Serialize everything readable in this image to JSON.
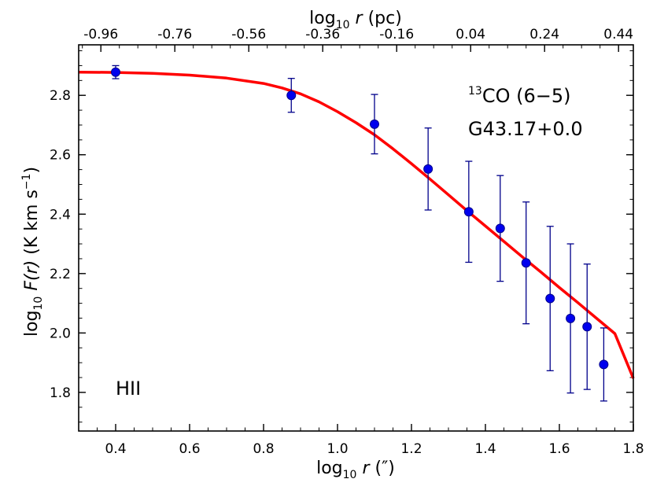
{
  "chart_data": {
    "type": "scatter",
    "title": "",
    "xlabel": {
      "prefix": "log",
      "sub": "10",
      "var": "r",
      "unit": " (″)"
    },
    "x2label": {
      "prefix": "log",
      "sub": "10",
      "var": "r",
      "unit": " (pc)"
    },
    "ylabel": {
      "prefix": "log",
      "sub": "10",
      "var": "F(r)",
      "unit": " (K km s",
      "sup": "−1",
      "close": ")"
    },
    "xlim": [
      0.3,
      1.8
    ],
    "ylim": [
      1.67,
      2.97
    ],
    "x_ticks": [
      0.4,
      0.6,
      0.8,
      1.0,
      1.2,
      1.4,
      1.6,
      1.8
    ],
    "x_tick_labels": [
      "0.4",
      "0.6",
      "0.8",
      "1.0",
      "1.2",
      "1.4",
      "1.6",
      "1.8"
    ],
    "y_ticks": [
      1.8,
      2.0,
      2.2,
      2.4,
      2.6,
      2.8
    ],
    "y_tick_labels": [
      "1.8",
      "2.0",
      "2.2",
      "2.4",
      "2.6",
      "2.8"
    ],
    "top_ticks": [
      0.36,
      0.56,
      0.76,
      0.96,
      1.16,
      1.36,
      1.56,
      1.76
    ],
    "top_tick_labels": [
      "-0.96",
      "-0.76",
      "-0.56",
      "-0.36",
      "-0.16",
      "0.04",
      "0.24",
      "0.44"
    ],
    "series": [
      {
        "name": "data",
        "color": "#0000ee",
        "points": [
          {
            "x": 0.4,
            "y": 2.878,
            "err": 0.022
          },
          {
            "x": 0.875,
            "y": 2.8,
            "err": 0.057
          },
          {
            "x": 1.1,
            "y": 2.703,
            "err": 0.1
          },
          {
            "x": 1.245,
            "y": 2.552,
            "err": 0.138
          },
          {
            "x": 1.355,
            "y": 2.408,
            "err": 0.17
          },
          {
            "x": 1.44,
            "y": 2.352,
            "err": 0.178
          },
          {
            "x": 1.51,
            "y": 2.236,
            "err": 0.205
          },
          {
            "x": 1.575,
            "y": 2.116,
            "err": 0.243
          },
          {
            "x": 1.63,
            "y": 2.049,
            "err": 0.251
          },
          {
            "x": 1.675,
            "y": 2.021,
            "err": 0.211
          },
          {
            "x": 1.72,
            "y": 1.894,
            "err": 0.123
          }
        ]
      },
      {
        "name": "fit",
        "color": "#ff0000",
        "x": [
          0.3,
          0.4,
          0.5,
          0.6,
          0.7,
          0.8,
          0.85,
          0.9,
          0.95,
          1.0,
          1.05,
          1.1,
          1.15,
          1.2,
          1.25,
          1.3,
          1.35,
          1.4,
          1.45,
          1.5,
          1.55,
          1.6,
          1.65,
          1.7,
          1.75,
          1.8
        ],
        "y": [
          2.878,
          2.877,
          2.874,
          2.868,
          2.858,
          2.84,
          2.825,
          2.805,
          2.778,
          2.745,
          2.708,
          2.667,
          2.62,
          2.57,
          2.518,
          2.465,
          2.412,
          2.36,
          2.308,
          2.256,
          2.205,
          2.153,
          2.102,
          2.05,
          1.998,
          1.847
        ]
      }
    ],
    "annotations": {
      "line_label_sup": "13",
      "line_label": "CO (6−5)",
      "source": "G43.17+0.0",
      "region": "HII"
    }
  }
}
